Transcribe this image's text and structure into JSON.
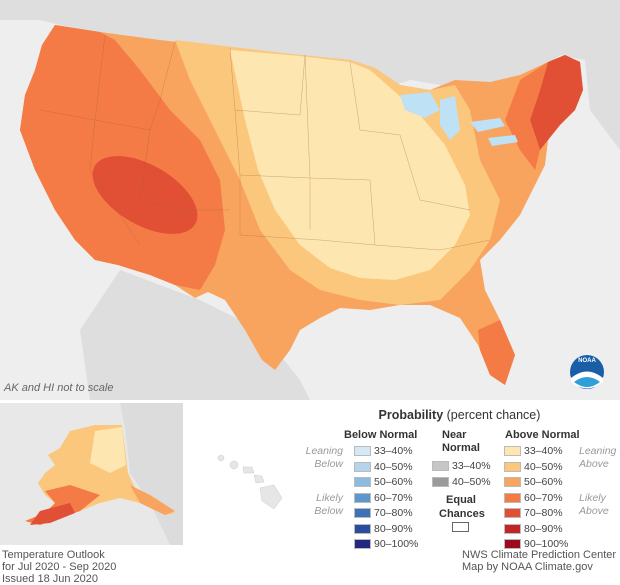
{
  "map": {
    "note": "AK and HI not to scale",
    "logo_text": "NOAA"
  },
  "footer": {
    "left": [
      "Temperature Outlook",
      "for Jul 2020 - Sep 2020",
      "Issued 18 Jun 2020"
    ],
    "right": [
      "NWS Climate Prediction Center",
      "Map by NOAA Climate.gov"
    ]
  },
  "legend": {
    "title_bold": "Probability",
    "title_rest": "(percent chance)",
    "below_normal": {
      "header": "Below Normal",
      "leaning_label": [
        "Leaning",
        "Below"
      ],
      "likely_label": [
        "Likely",
        "Below"
      ],
      "items": [
        {
          "label": "33–40%",
          "color": "#d5e8f5"
        },
        {
          "label": "40–50%",
          "color": "#b4d4ec"
        },
        {
          "label": "50–60%",
          "color": "#8dbadf"
        },
        {
          "label": "60–70%",
          "color": "#5e97cc"
        },
        {
          "label": "70–80%",
          "color": "#3d72b7"
        },
        {
          "label": "80–90%",
          "color": "#2a4e9e"
        },
        {
          "label": "90–100%",
          "color": "#22287f"
        }
      ]
    },
    "near_normal": {
      "header": [
        "Near",
        "Normal"
      ],
      "items": [
        {
          "label": "33–40%",
          "color": "#c6c6c6"
        },
        {
          "label": "40–50%",
          "color": "#9a9a9a"
        }
      ]
    },
    "equal_chances": {
      "header": [
        "Equal",
        "Chances"
      ],
      "color": "#ffffff"
    },
    "above_normal": {
      "header": "Above Normal",
      "leaning_label": [
        "Leaning",
        "Above"
      ],
      "likely_label": [
        "Likely",
        "Above"
      ],
      "items": [
        {
          "label": "33–40%",
          "color": "#fde6b0"
        },
        {
          "label": "40–50%",
          "color": "#fbc77d"
        },
        {
          "label": "50–60%",
          "color": "#f9a45e"
        },
        {
          "label": "60–70%",
          "color": "#f47b45"
        },
        {
          "label": "70–80%",
          "color": "#e14f34"
        },
        {
          "label": "80–90%",
          "color": "#c32427"
        },
        {
          "label": "90–100%",
          "color": "#9a0b1e"
        }
      ]
    }
  }
}
